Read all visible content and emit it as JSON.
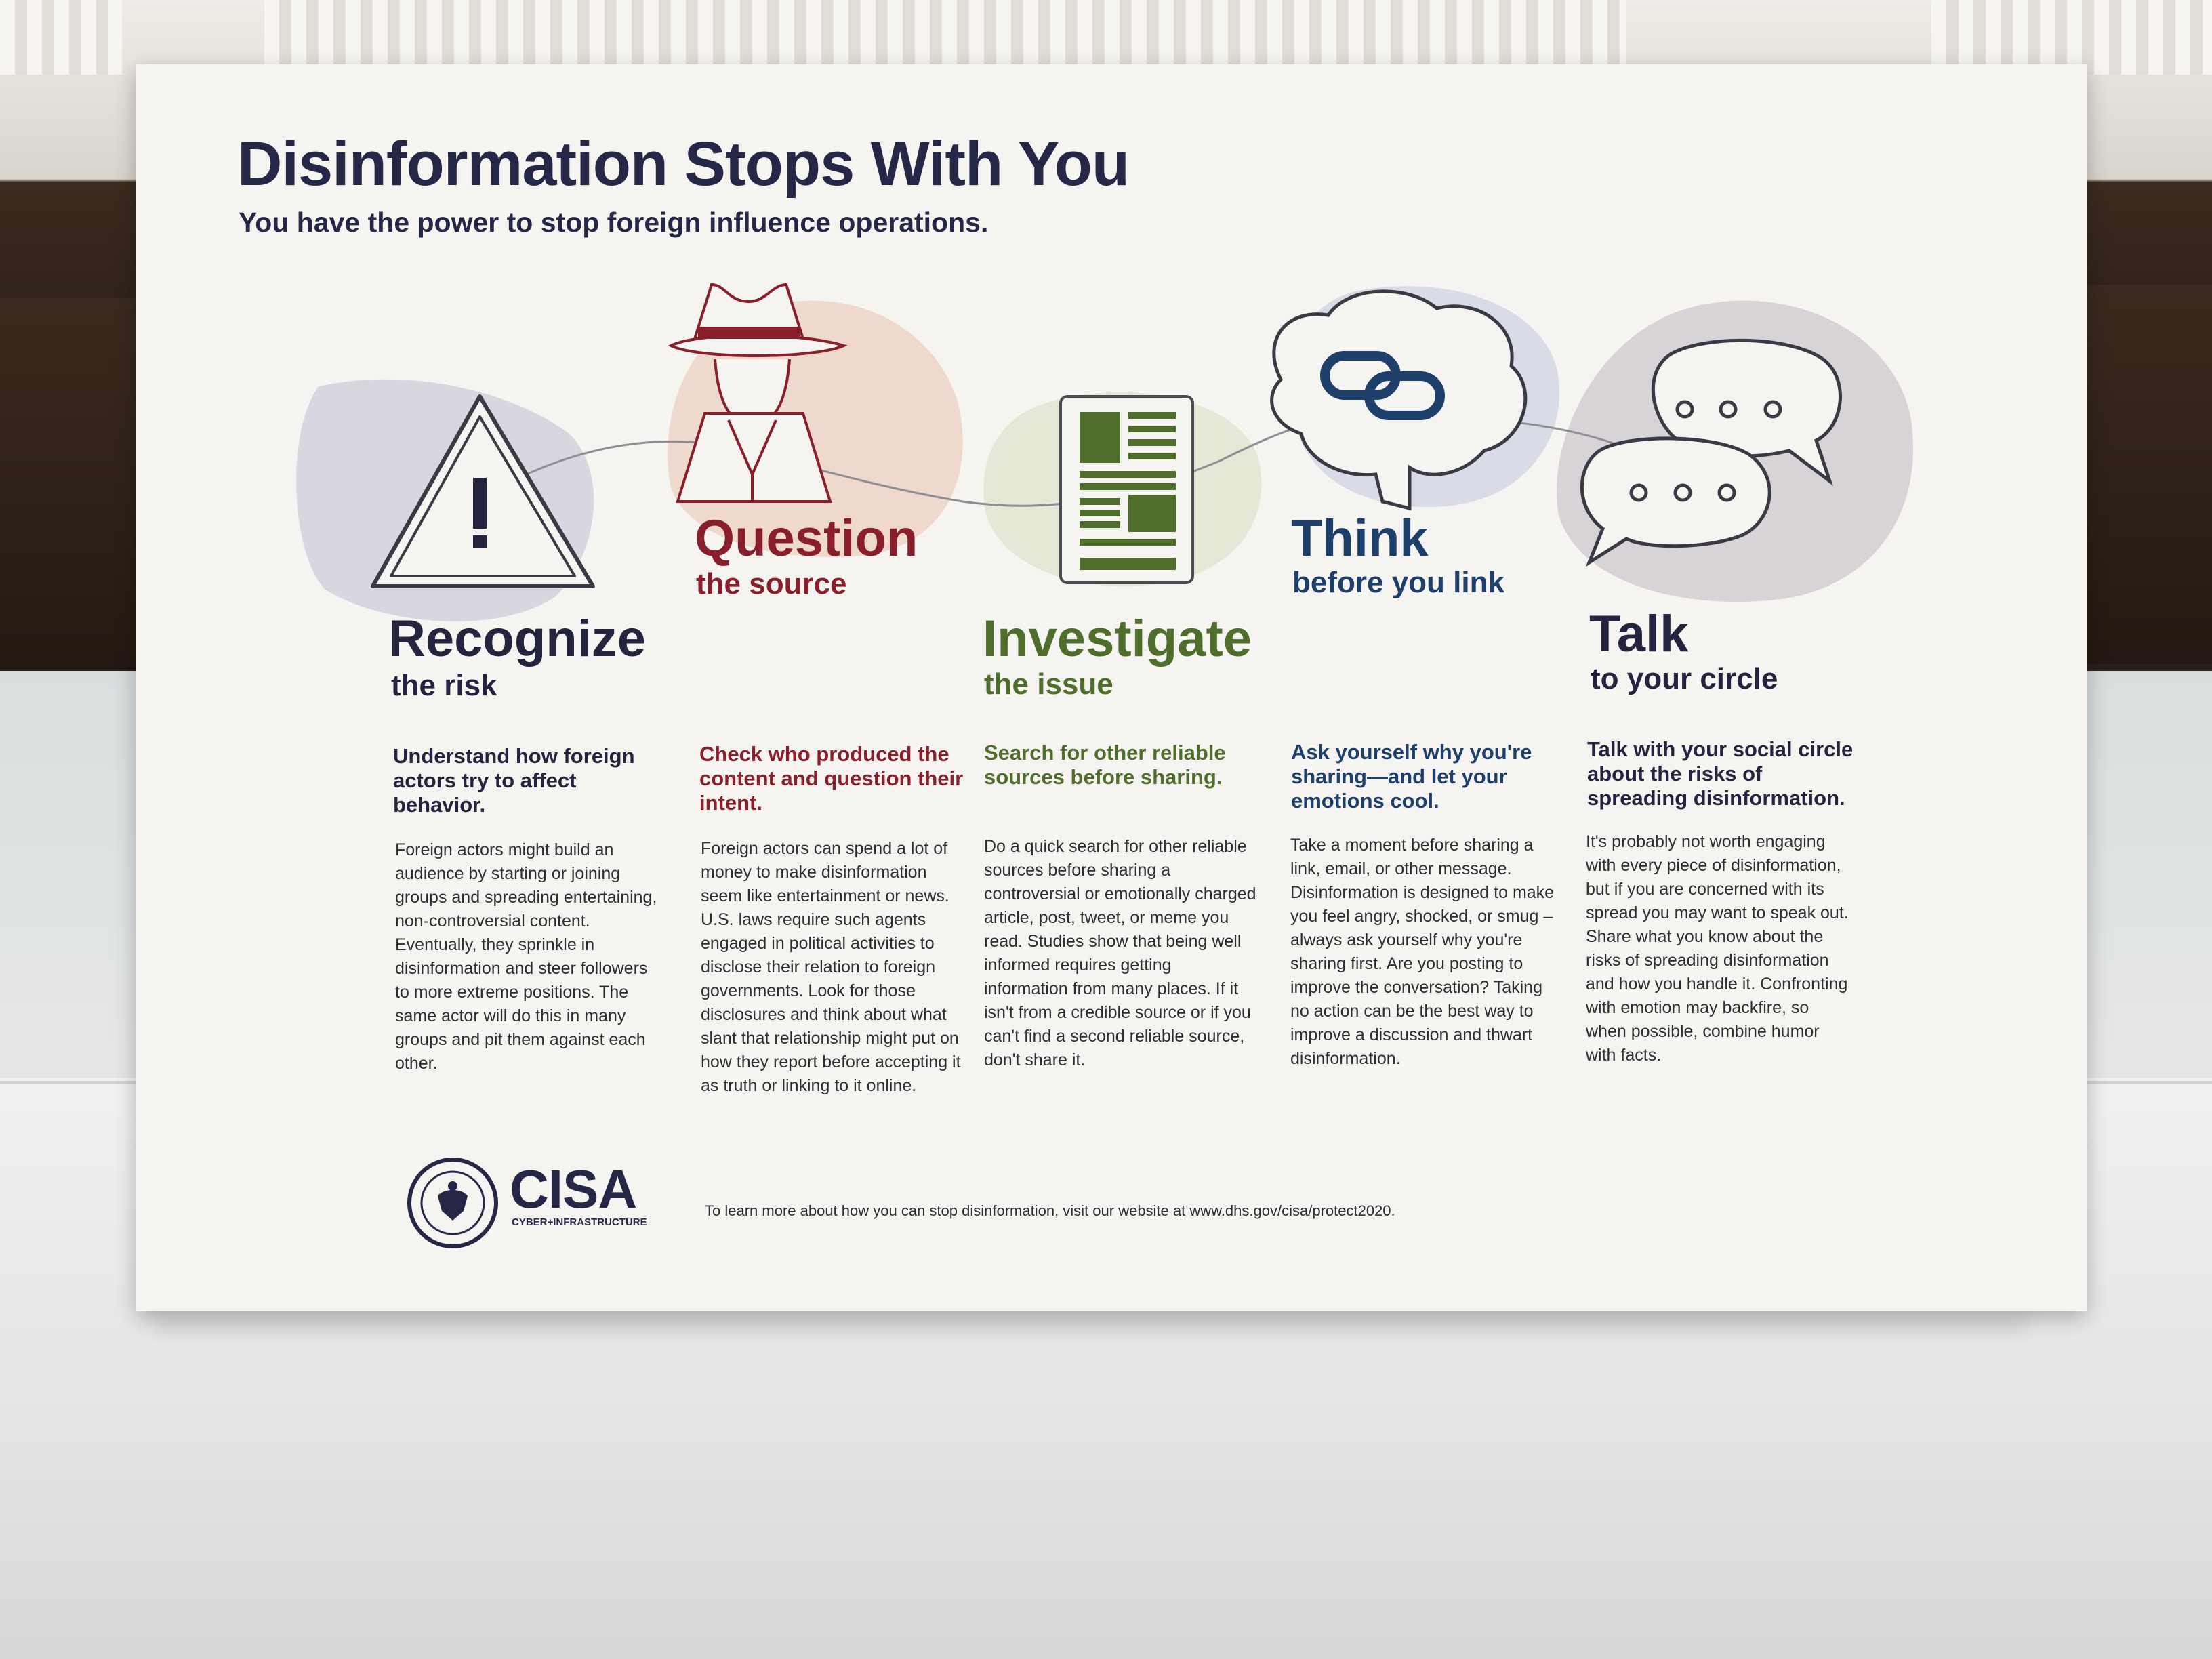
{
  "poster": {
    "title": "Disinformation Stops With You",
    "subtitle": "You have the power to stop foreign influence operations."
  },
  "steps": [
    {
      "heading": "Recognize",
      "sub": "the risk",
      "lead": "Understand how foreign actors try to affect behavior.",
      "body": "Foreign actors might build an audience by starting or joining groups and spreading entertaining, non-controversial content. Eventually, they sprinkle in disinformation and steer followers to more extreme positions. The same actor will do this in many groups and pit them against each other.",
      "icon": "warning-triangle-icon",
      "color": "#24243f"
    },
    {
      "heading": "Question",
      "sub": "the source",
      "lead": "Check who produced the content and question their intent.",
      "body": "Foreign actors can spend a lot of money to make disinformation seem like entertainment or news. U.S. laws require such agents engaged in political activities to disclose their relation to foreign governments. Look for those disclosures and think about what slant that relationship might put on how they report before accepting it as truth or linking to it online.",
      "icon": "spy-hat-icon",
      "color": "#8a1f2c"
    },
    {
      "heading": "Investigate",
      "sub": "the issue",
      "lead": "Search for other reliable sources before sharing.",
      "body": "Do a quick search for other reliable sources before sharing a controversial or emotionally charged article, post, tweet, or meme you read. Studies show that being well informed requires getting information from many places. If it isn't from a credible source or if you can't find a second reliable source, don't share it.",
      "icon": "newspaper-icon",
      "color": "#4f6e2b"
    },
    {
      "heading": "Think",
      "sub": "before you link",
      "lead": "Ask yourself why you're sharing—and let your emotions cool.",
      "body": "Take a moment before sharing a link, email, or other message. Disinformation is designed to make you feel angry, shocked, or smug – always ask yourself why you're sharing first. Are you posting to improve the conversation? Taking no action can be the best way to improve a discussion and thwart disinformation.",
      "icon": "brain-link-icon",
      "color": "#1f3f6b"
    },
    {
      "heading": "Talk",
      "sub": "to your circle",
      "lead": "Talk with your social circle about the risks of spreading disinformation.",
      "body": "It's probably not worth engaging with every piece of disinformation, but if you are concerned with its spread you may want to speak out. Share what you know about the risks of spreading disinformation and how you handle it. Confronting with emotion may backfire, so when possible, combine humor with facts.",
      "icon": "speech-bubbles-icon",
      "color": "#24243f"
    }
  ],
  "footer": {
    "text": "To learn more about how you can stop disinformation, visit our website at www.dhs.gov/cisa/protect2020.",
    "logo_name": "CISA",
    "logo_sub": "CYBER+INFRASTRUCTURE"
  }
}
